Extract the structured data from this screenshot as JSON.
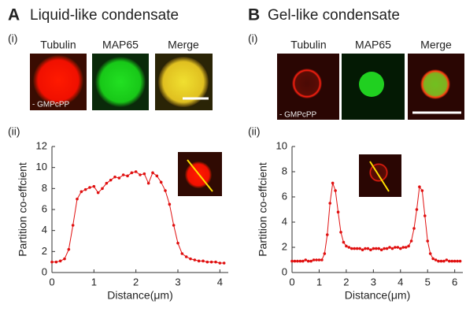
{
  "panels": [
    {
      "letter": "A",
      "title": "Liquid-like condensate",
      "sub_i": "(i)",
      "sub_ii": "(ii)",
      "images": [
        "Tubulin",
        "MAP65",
        "Merge"
      ],
      "note": "- GMPcPP"
    },
    {
      "letter": "B",
      "title": "Gel-like condensate",
      "sub_i": "(i)",
      "sub_ii": "(ii)",
      "images": [
        "Tubulin",
        "MAP65",
        "Merge"
      ],
      "note": "- GMPcPP"
    }
  ],
  "chart_data": [
    {
      "type": "line",
      "xlabel": "Distance(μm)",
      "ylabel": "Partition co-effcient",
      "x": [
        0,
        0.1,
        0.2,
        0.3,
        0.4,
        0.5,
        0.6,
        0.7,
        0.8,
        0.9,
        1.0,
        1.1,
        1.2,
        1.3,
        1.4,
        1.5,
        1.6,
        1.7,
        1.8,
        1.9,
        2.0,
        2.1,
        2.2,
        2.3,
        2.4,
        2.5,
        2.6,
        2.7,
        2.8,
        2.9,
        3.0,
        3.1,
        3.2,
        3.3,
        3.4,
        3.5,
        3.6,
        3.7,
        3.8,
        3.9,
        4.0,
        4.1
      ],
      "series": [
        {
          "color": "#e01010",
          "values": [
            1.0,
            1.0,
            1.1,
            1.3,
            2.2,
            4.5,
            7.0,
            7.7,
            7.9,
            8.1,
            8.2,
            7.6,
            8.0,
            8.5,
            8.8,
            9.1,
            9.0,
            9.3,
            9.2,
            9.5,
            9.6,
            9.3,
            9.4,
            8.5,
            9.5,
            9.2,
            8.6,
            7.8,
            6.5,
            4.5,
            2.8,
            1.8,
            1.5,
            1.3,
            1.2,
            1.1,
            1.1,
            1.0,
            1.0,
            1.0,
            0.9,
            0.9
          ]
        }
      ],
      "xlim": [
        0,
        4.2
      ],
      "xticks": [
        0,
        1,
        2,
        3,
        4
      ],
      "ylim": [
        0,
        12
      ],
      "yticks": [
        0,
        2,
        4,
        6,
        8,
        10,
        12
      ]
    },
    {
      "type": "line",
      "xlabel": "Distance(μm)",
      "ylabel": "Partition co-effcient",
      "x": [
        0,
        0.1,
        0.2,
        0.3,
        0.4,
        0.5,
        0.6,
        0.7,
        0.8,
        0.9,
        1.0,
        1.1,
        1.2,
        1.3,
        1.4,
        1.5,
        1.6,
        1.7,
        1.8,
        1.9,
        2.0,
        2.1,
        2.2,
        2.3,
        2.4,
        2.5,
        2.6,
        2.7,
        2.8,
        2.9,
        3.0,
        3.1,
        3.2,
        3.3,
        3.4,
        3.5,
        3.6,
        3.7,
        3.8,
        3.9,
        4.0,
        4.1,
        4.2,
        4.3,
        4.4,
        4.5,
        4.6,
        4.7,
        4.8,
        4.9,
        5.0,
        5.1,
        5.2,
        5.3,
        5.4,
        5.5,
        5.6,
        5.7,
        5.8,
        5.9,
        6.0,
        6.1,
        6.2
      ],
      "series": [
        {
          "color": "#e01010",
          "values": [
            0.9,
            0.9,
            0.9,
            0.9,
            0.9,
            1.0,
            0.9,
            0.9,
            1.0,
            1.0,
            1.0,
            1.0,
            1.5,
            3.0,
            5.5,
            7.1,
            6.5,
            4.8,
            3.2,
            2.4,
            2.1,
            2.0,
            1.9,
            1.9,
            1.9,
            1.9,
            1.8,
            1.9,
            1.9,
            1.8,
            1.9,
            1.9,
            1.9,
            1.8,
            1.9,
            1.9,
            2.0,
            1.9,
            2.0,
            2.0,
            1.9,
            2.0,
            2.0,
            2.1,
            2.5,
            3.5,
            5.0,
            6.8,
            6.5,
            4.5,
            2.5,
            1.5,
            1.1,
            1.0,
            0.9,
            0.9,
            0.9,
            1.0,
            0.9,
            0.9,
            0.9,
            0.9,
            0.9
          ]
        }
      ],
      "xlim": [
        0,
        6.3
      ],
      "xticks": [
        0,
        1,
        2,
        3,
        4,
        5,
        6
      ],
      "ylim": [
        0,
        10
      ],
      "yticks": [
        0,
        2,
        4,
        6,
        8,
        10
      ]
    }
  ]
}
